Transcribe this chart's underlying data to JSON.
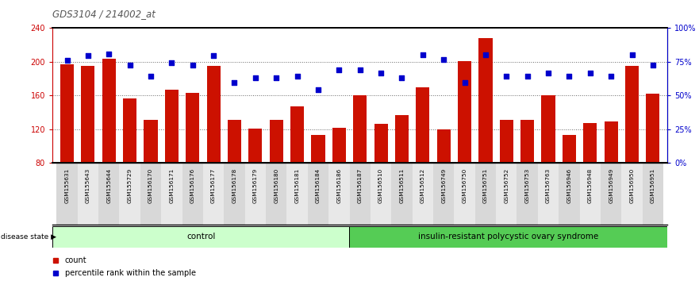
{
  "title": "GDS3104 / 214002_at",
  "samples": [
    "GSM155631",
    "GSM155643",
    "GSM155644",
    "GSM155729",
    "GSM156170",
    "GSM156171",
    "GSM156176",
    "GSM156177",
    "GSM156178",
    "GSM156179",
    "GSM156180",
    "GSM156181",
    "GSM156184",
    "GSM156186",
    "GSM156187",
    "GSM156510",
    "GSM156511",
    "GSM156512",
    "GSM156749",
    "GSM156750",
    "GSM156751",
    "GSM156752",
    "GSM156753",
    "GSM156763",
    "GSM156946",
    "GSM156948",
    "GSM156949",
    "GSM156950",
    "GSM156951"
  ],
  "bar_values": [
    197,
    195,
    204,
    157,
    131,
    167,
    163,
    195,
    131,
    121,
    131,
    147,
    113,
    122,
    160,
    126,
    137,
    170,
    120,
    201,
    228,
    131,
    131,
    160,
    113,
    127,
    129,
    195,
    162
  ],
  "dot_values_left_scale": [
    202,
    207,
    209,
    196,
    183,
    199,
    196,
    207,
    175,
    181,
    181,
    183,
    167,
    190,
    190,
    187,
    181,
    208,
    203,
    175,
    208,
    183,
    183,
    187,
    183,
    187,
    183,
    208,
    196
  ],
  "control_count": 14,
  "ylim_left": [
    80,
    240
  ],
  "yticks_left": [
    80,
    120,
    160,
    200,
    240
  ],
  "yticks_right_labels": [
    "0%",
    "25%",
    "50%",
    "75%",
    "100%"
  ],
  "yticks_right_vals": [
    0,
    25,
    50,
    75,
    100
  ],
  "bar_color": "#cc1100",
  "dot_color": "#0000cc",
  "control_label": "control",
  "disease_label": "insulin-resistant polycystic ovary syndrome",
  "control_color": "#ccffcc",
  "disease_color": "#55cc55",
  "legend_count": "count",
  "legend_pct": "percentile rank within the sample",
  "title_color": "#555555",
  "left_axis_color": "#cc0000",
  "right_axis_color": "#0000cc",
  "bg_color": "#f0f0f0"
}
